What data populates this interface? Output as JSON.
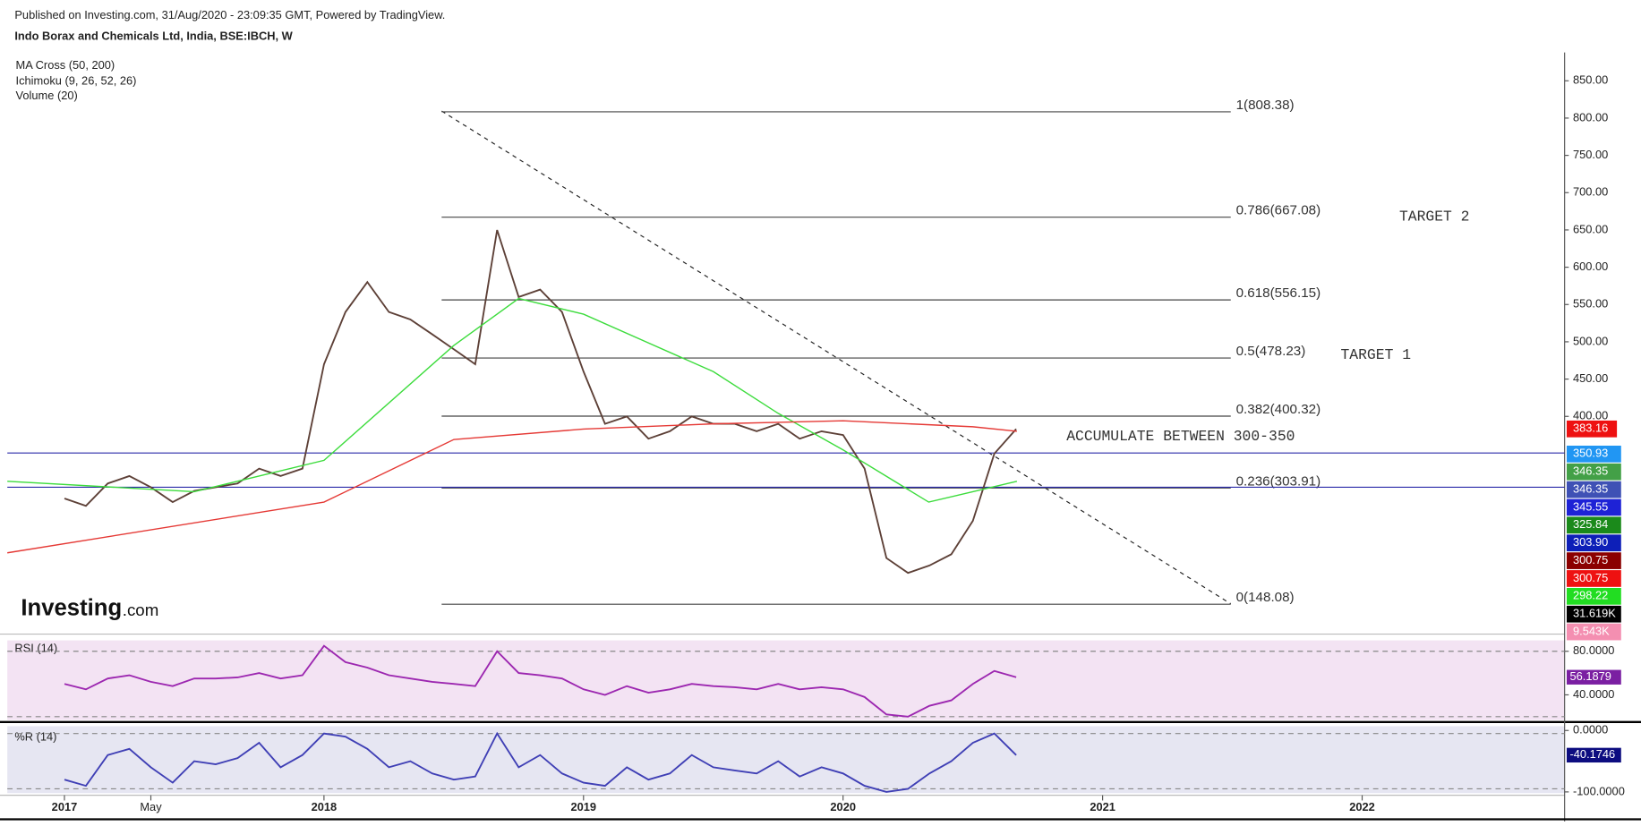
{
  "header": {
    "published": "Published on Investing.com, 31/Aug/2020 - 23:09:35 GMT, Powered by TradingView.",
    "logo": [
      "Investing",
      ".com"
    ]
  },
  "chart_data": [
    {
      "type": "line",
      "title": "Indo Borax and Chemicals Ltd, India, BSE:IBCH, W",
      "indicators": [
        "MA Cross (50, 200)",
        "Ichimoku (9, 26, 52, 26)",
        "Volume (20)"
      ],
      "xlim": [
        2016.78,
        2022.78
      ],
      "ylim": [
        108,
        888
      ],
      "yticks": [
        {
          "value": 850,
          "label": "850.00"
        },
        {
          "value": 800,
          "label": "800.00"
        },
        {
          "value": 750,
          "label": "750.00"
        },
        {
          "value": 700,
          "label": "700.00"
        },
        {
          "value": 650,
          "label": "650.00"
        },
        {
          "value": 600,
          "label": "600.00"
        },
        {
          "value": 550,
          "label": "550.00"
        },
        {
          "value": 500,
          "label": "500.00"
        },
        {
          "value": 450,
          "label": "450.00"
        },
        {
          "value": 400,
          "label": "400.00"
        }
      ],
      "series": [
        {
          "color": "#5d4037",
          "x": [
            2017,
            2017.083,
            2017.167,
            2017.25,
            2017.333,
            2017.417,
            2017.5,
            2017.583,
            2017.667,
            2017.75,
            2017.833,
            2017.917,
            2018,
            2018.083,
            2018.167,
            2018.25,
            2018.333,
            2018.417,
            2018.5,
            2018.583,
            2018.667,
            2018.75,
            2018.833,
            2018.917,
            2019,
            2019.083,
            2019.167,
            2019.25,
            2019.333,
            2019.417,
            2019.5,
            2019.583,
            2019.667,
            2019.75,
            2019.833,
            2019.917,
            2020,
            2020.083,
            2020.167,
            2020.25,
            2020.333,
            2020.417,
            2020.5,
            2020.583,
            2020.667
          ],
          "values": [
            290,
            280,
            310,
            320,
            305,
            285,
            300,
            305,
            310,
            330,
            320,
            330,
            470,
            540,
            580,
            540,
            530,
            510,
            490,
            470,
            650,
            560,
            570,
            540,
            460,
            390,
            400,
            370,
            380,
            400,
            390,
            390,
            380,
            390,
            370,
            380,
            375,
            330,
            210,
            190,
            200,
            215,
            260,
            350,
            383.16
          ]
        },
        {
          "color": "#3ddc3d",
          "x": [
            2016.78,
            2017.5,
            2018,
            2018.5,
            2018.75,
            2019,
            2019.5,
            2019.75,
            2020,
            2020.33,
            2020.5,
            2020.67
          ],
          "values": [
            313,
            299,
            341,
            495,
            558,
            537,
            460,
            404,
            355,
            285,
            299,
            313
          ]
        },
        {
          "color": "#e53935",
          "x": [
            2016.78,
            2018,
            2018.5,
            2019,
            2019.5,
            2020,
            2020.5,
            2020.67
          ],
          "values": [
            217,
            285,
            369,
            383,
            390,
            394,
            386,
            380
          ]
        }
      ],
      "fib_levels": [
        {
          "label": "1(808.38)",
          "value": 808.38
        },
        {
          "label": "0.786(667.08)",
          "value": 667.08
        },
        {
          "label": "0.618(556.15)",
          "value": 556.15
        },
        {
          "label": "0.5(478.23)",
          "value": 478.23
        },
        {
          "label": "0.382(400.32)",
          "value": 400.32
        },
        {
          "label": "0.236(303.91)",
          "value": 303.91
        },
        {
          "label": "0(148.08)",
          "value": 148.08
        }
      ],
      "horizontal_lines": [
        350.93,
        305
      ],
      "annotations": [
        "ACCUMULATE BETWEEN 300-350",
        "TARGET 1",
        "TARGET 2"
      ],
      "price_tags": [
        {
          "label": "350.93",
          "color": "#2196f3"
        },
        {
          "label": "346.35",
          "color": "#43a047"
        },
        {
          "label": "346.35",
          "color": "#3f51b5"
        },
        {
          "label": "345.55",
          "color": "#1e22d6"
        },
        {
          "label": "325.84",
          "color": "#1b8a1b"
        },
        {
          "label": "303.90",
          "color": "#0d1fb8"
        },
        {
          "label": "300.75",
          "color": "#8b0000"
        },
        {
          "label": "300.75",
          "color": "#ee1111"
        },
        {
          "label": "298.22",
          "color": "#22dd22"
        },
        {
          "label": "31.619K",
          "color": "#000000"
        },
        {
          "label": "9.543K",
          "color": "#f48fb1"
        }
      ]
    },
    {
      "type": "line",
      "title": "RSI (14)",
      "xlim": [
        2016.78,
        2022.78
      ],
      "ylim": [
        17,
        90
      ],
      "yticks": [
        {
          "value": 80,
          "label": "80.0000"
        },
        {
          "value": 40,
          "label": "40.0000"
        }
      ],
      "bands": [
        80,
        20
      ],
      "series": [
        {
          "color": "#9c27b0",
          "x": [
            2017,
            2017.083,
            2017.167,
            2017.25,
            2017.333,
            2017.417,
            2017.5,
            2017.583,
            2017.667,
            2017.75,
            2017.833,
            2017.917,
            2018,
            2018.083,
            2018.167,
            2018.25,
            2018.333,
            2018.417,
            2018.5,
            2018.583,
            2018.667,
            2018.75,
            2018.833,
            2018.917,
            2019,
            2019.083,
            2019.167,
            2019.25,
            2019.333,
            2019.417,
            2019.5,
            2019.583,
            2019.667,
            2019.75,
            2019.833,
            2019.917,
            2020,
            2020.083,
            2020.167,
            2020.25,
            2020.333,
            2020.417,
            2020.5,
            2020.583,
            2020.667
          ],
          "values": [
            50,
            45,
            55,
            58,
            52,
            48,
            55,
            55,
            56,
            60,
            55,
            58,
            85,
            70,
            65,
            58,
            55,
            52,
            50,
            48,
            80,
            60,
            58,
            55,
            45,
            40,
            48,
            42,
            45,
            50,
            48,
            47,
            45,
            50,
            45,
            47,
            45,
            38,
            22,
            20,
            30,
            35,
            50,
            62,
            56.1879
          ],
          "tag_color": "#7b1fa2"
        }
      ]
    },
    {
      "type": "line",
      "title": "%R (14)",
      "xlim": [
        2016.78,
        2022.78
      ],
      "ylim": [
        -102,
        7
      ],
      "yticks": [
        {
          "value": 0,
          "label": "0.0000"
        },
        {
          "value": -100,
          "label": "-100.0000"
        }
      ],
      "bands": [
        -5,
        -95
      ],
      "xticks": [
        {
          "value": 2017,
          "label": "2017"
        },
        {
          "value": 2017.333,
          "label": "May"
        },
        {
          "value": 2018,
          "label": "2018"
        },
        {
          "value": 2019,
          "label": "2019"
        },
        {
          "value": 2020,
          "label": "2020"
        },
        {
          "value": 2021,
          "label": "2021"
        },
        {
          "value": 2022,
          "label": "2022"
        }
      ],
      "series": [
        {
          "color": "#3f3fb5",
          "x": [
            2017,
            2017.083,
            2017.167,
            2017.25,
            2017.333,
            2017.417,
            2017.5,
            2017.583,
            2017.667,
            2017.75,
            2017.833,
            2017.917,
            2018,
            2018.083,
            2018.167,
            2018.25,
            2018.333,
            2018.417,
            2018.5,
            2018.583,
            2018.667,
            2018.75,
            2018.833,
            2018.917,
            2019,
            2019.083,
            2019.167,
            2019.25,
            2019.333,
            2019.417,
            2019.5,
            2019.583,
            2019.667,
            2019.75,
            2019.833,
            2019.917,
            2020,
            2020.083,
            2020.167,
            2020.25,
            2020.333,
            2020.417,
            2020.5,
            2020.583,
            2020.667
          ],
          "values": [
            -80,
            -90,
            -40,
            -30,
            -60,
            -85,
            -50,
            -55,
            -45,
            -20,
            -60,
            -40,
            -5,
            -10,
            -30,
            -60,
            -50,
            -70,
            -80,
            -75,
            -5,
            -60,
            -40,
            -70,
            -85,
            -90,
            -60,
            -80,
            -70,
            -40,
            -60,
            -65,
            -70,
            -50,
            -75,
            -60,
            -70,
            -90,
            -100,
            -95,
            -70,
            -50,
            -20,
            -5,
            -40.1746
          ],
          "tag_color": "#0d0d80"
        }
      ]
    }
  ]
}
